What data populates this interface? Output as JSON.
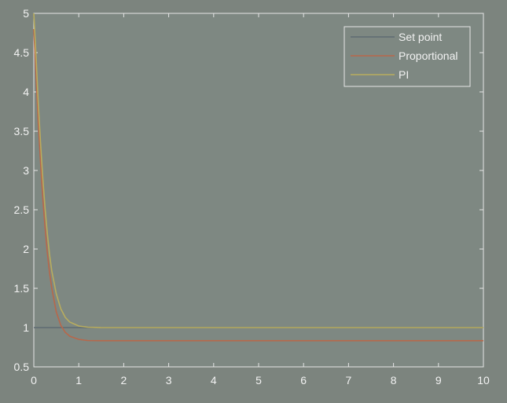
{
  "chart_data": {
    "type": "line",
    "title": "",
    "xlabel": "",
    "ylabel": "",
    "xlim": [
      0,
      10
    ],
    "ylim": [
      0.5,
      5
    ],
    "xticks": [
      0,
      1,
      2,
      3,
      4,
      5,
      6,
      7,
      8,
      9,
      10
    ],
    "yticks": [
      0.5,
      1,
      1.5,
      2,
      2.5,
      3,
      3.5,
      4,
      4.5,
      5
    ],
    "grid": false,
    "legend_position": "top-right",
    "series": [
      {
        "name": "Set point",
        "color": "#5f6b73",
        "x": [
          0,
          10
        ],
        "y": [
          1,
          1
        ]
      },
      {
        "name": "Proportional",
        "color": "#b8674a",
        "x": [
          0,
          0.05,
          0.1,
          0.15,
          0.2,
          0.25,
          0.3,
          0.35,
          0.4,
          0.5,
          0.6,
          0.7,
          0.8,
          1.0,
          1.2,
          1.5,
          2,
          3,
          5,
          10
        ],
        "y": [
          4.8,
          4.2,
          3.6,
          3.1,
          2.65,
          2.28,
          1.96,
          1.7,
          1.5,
          1.2,
          1.03,
          0.94,
          0.89,
          0.85,
          0.835,
          0.833,
          0.833,
          0.833,
          0.833,
          0.833
        ]
      },
      {
        "name": "PI",
        "color": "#b9ad5e",
        "x": [
          0,
          0.05,
          0.1,
          0.15,
          0.2,
          0.25,
          0.3,
          0.35,
          0.4,
          0.5,
          0.6,
          0.7,
          0.8,
          1.0,
          1.2,
          1.5,
          2,
          3,
          5,
          10
        ],
        "y": [
          5.0,
          4.45,
          3.85,
          3.35,
          2.9,
          2.52,
          2.2,
          1.93,
          1.72,
          1.43,
          1.24,
          1.13,
          1.07,
          1.02,
          1.005,
          1.0,
          1.0,
          1.0,
          1.0,
          1.0
        ]
      }
    ]
  }
}
